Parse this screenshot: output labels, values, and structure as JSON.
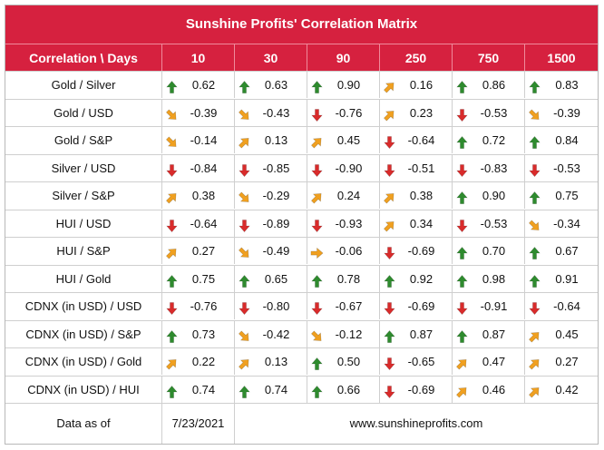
{
  "title": "Sunshine Profits' Correlation Matrix",
  "header": [
    "Correlation \\ Days",
    "10",
    "30",
    "90",
    "250",
    "750",
    "1500"
  ],
  "rows": [
    {
      "label": "Gold / Silver",
      "cells": [
        {
          "v": "0.62",
          "a": "up"
        },
        {
          "v": "0.63",
          "a": "up"
        },
        {
          "v": "0.90",
          "a": "up"
        },
        {
          "v": "0.16",
          "a": "up-right"
        },
        {
          "v": "0.86",
          "a": "up"
        },
        {
          "v": "0.83",
          "a": "up"
        }
      ]
    },
    {
      "label": "Gold / USD",
      "cells": [
        {
          "v": "-0.39",
          "a": "down-right"
        },
        {
          "v": "-0.43",
          "a": "down-right"
        },
        {
          "v": "-0.76",
          "a": "down"
        },
        {
          "v": "0.23",
          "a": "up-right"
        },
        {
          "v": "-0.53",
          "a": "down"
        },
        {
          "v": "-0.39",
          "a": "down-right"
        }
      ]
    },
    {
      "label": "Gold / S&P",
      "cells": [
        {
          "v": "-0.14",
          "a": "down-right"
        },
        {
          "v": "0.13",
          "a": "up-right"
        },
        {
          "v": "0.45",
          "a": "up-right"
        },
        {
          "v": "-0.64",
          "a": "down"
        },
        {
          "v": "0.72",
          "a": "up"
        },
        {
          "v": "0.84",
          "a": "up"
        }
      ]
    },
    {
      "label": "Silver / USD",
      "cells": [
        {
          "v": "-0.84",
          "a": "down"
        },
        {
          "v": "-0.85",
          "a": "down"
        },
        {
          "v": "-0.90",
          "a": "down"
        },
        {
          "v": "-0.51",
          "a": "down"
        },
        {
          "v": "-0.83",
          "a": "down"
        },
        {
          "v": "-0.53",
          "a": "down"
        }
      ]
    },
    {
      "label": "Silver / S&P",
      "cells": [
        {
          "v": "0.38",
          "a": "up-right"
        },
        {
          "v": "-0.29",
          "a": "down-right"
        },
        {
          "v": "0.24",
          "a": "up-right"
        },
        {
          "v": "0.38",
          "a": "up-right"
        },
        {
          "v": "0.90",
          "a": "up"
        },
        {
          "v": "0.75",
          "a": "up"
        }
      ]
    },
    {
      "label": "HUI / USD",
      "cells": [
        {
          "v": "-0.64",
          "a": "down"
        },
        {
          "v": "-0.89",
          "a": "down"
        },
        {
          "v": "-0.93",
          "a": "down"
        },
        {
          "v": "0.34",
          "a": "up-right"
        },
        {
          "v": "-0.53",
          "a": "down"
        },
        {
          "v": "-0.34",
          "a": "down-right"
        }
      ]
    },
    {
      "label": "HUI / S&P",
      "cells": [
        {
          "v": "0.27",
          "a": "up-right"
        },
        {
          "v": "-0.49",
          "a": "down-right"
        },
        {
          "v": "-0.06",
          "a": "right"
        },
        {
          "v": "-0.69",
          "a": "down"
        },
        {
          "v": "0.70",
          "a": "up"
        },
        {
          "v": "0.67",
          "a": "up"
        }
      ]
    },
    {
      "label": "HUI / Gold",
      "cells": [
        {
          "v": "0.75",
          "a": "up"
        },
        {
          "v": "0.65",
          "a": "up"
        },
        {
          "v": "0.78",
          "a": "up"
        },
        {
          "v": "0.92",
          "a": "up"
        },
        {
          "v": "0.98",
          "a": "up"
        },
        {
          "v": "0.91",
          "a": "up"
        }
      ]
    },
    {
      "label": "CDNX (in USD) / USD",
      "cells": [
        {
          "v": "-0.76",
          "a": "down"
        },
        {
          "v": "-0.80",
          "a": "down"
        },
        {
          "v": "-0.67",
          "a": "down"
        },
        {
          "v": "-0.69",
          "a": "down"
        },
        {
          "v": "-0.91",
          "a": "down"
        },
        {
          "v": "-0.64",
          "a": "down"
        }
      ]
    },
    {
      "label": "CDNX (in USD) / S&P",
      "cells": [
        {
          "v": "0.73",
          "a": "up"
        },
        {
          "v": "-0.42",
          "a": "down-right"
        },
        {
          "v": "-0.12",
          "a": "down-right"
        },
        {
          "v": "0.87",
          "a": "up"
        },
        {
          "v": "0.87",
          "a": "up"
        },
        {
          "v": "0.45",
          "a": "up-right"
        }
      ]
    },
    {
      "label": "CDNX (in USD) / Gold",
      "cells": [
        {
          "v": "0.22",
          "a": "up-right"
        },
        {
          "v": "0.13",
          "a": "up-right"
        },
        {
          "v": "0.50",
          "a": "up"
        },
        {
          "v": "-0.65",
          "a": "down"
        },
        {
          "v": "0.47",
          "a": "up-right"
        },
        {
          "v": "0.27",
          "a": "up-right"
        }
      ]
    },
    {
      "label": "CDNX (in USD) / HUI",
      "cells": [
        {
          "v": "0.74",
          "a": "up"
        },
        {
          "v": "0.74",
          "a": "up"
        },
        {
          "v": "0.66",
          "a": "up"
        },
        {
          "v": "-0.69",
          "a": "down"
        },
        {
          "v": "0.46",
          "a": "up-right"
        },
        {
          "v": "0.42",
          "a": "up-right"
        }
      ]
    }
  ],
  "footer": {
    "label": "Data as of",
    "date": "7/23/2021",
    "url": "www.sunshineprofits.com"
  },
  "colors": {
    "header": "#d6213f",
    "up": "#2e8b2e",
    "down": "#d92b2b",
    "diag": "#f0a020"
  },
  "icons": {
    "up": "arrow-up-icon",
    "down": "arrow-down-icon",
    "up-right": "arrow-up-right-icon",
    "down-right": "arrow-down-right-icon",
    "right": "arrow-right-icon"
  }
}
